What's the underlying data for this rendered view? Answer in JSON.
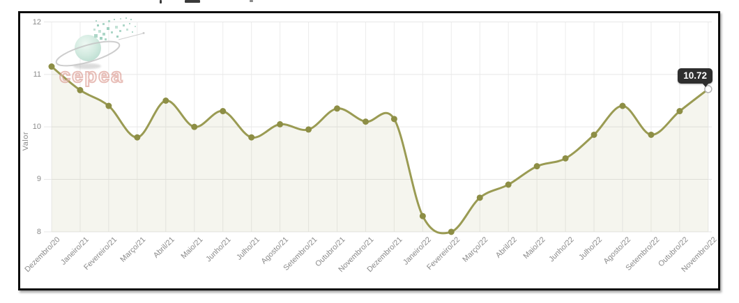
{
  "watermark": {
    "text": "cepea"
  },
  "tooltip": {
    "value": "10.72"
  },
  "colors": {
    "line": "#9a9b53",
    "dot": "#8d8e45",
    "area_fill": "rgba(155,155,85,0.10)",
    "grid_h": "#e7e7e7",
    "grid_v": "#ececec",
    "axis_text": "#8a8a8a",
    "tooltip_bg": "#2e2e2e",
    "frame_border": "#0c0c0c",
    "marker_stroke": "#b3b3b3",
    "logo_globe": "#cfe8dd",
    "logo_text": "#d68a80"
  },
  "chart_data": {
    "type": "line",
    "title": "",
    "xlabel": "",
    "ylabel": "Valor",
    "ylim": [
      8,
      12
    ],
    "yticks": [
      12,
      11,
      10,
      9,
      8
    ],
    "grid": true,
    "legend": "none",
    "categories": [
      "Dezembro/20",
      "Janeiro/21",
      "Fevereiro/21",
      "Março/21",
      "Abril/21",
      "Maio/21",
      "Junho/21",
      "Julho/21",
      "Agosto/21",
      "Setembro/21",
      "Outubro/21",
      "Novembro/21",
      "Dezembro/21",
      "Janeiro/22",
      "Fevereiro/22",
      "Março/22",
      "Abril/22",
      "Maio/22",
      "Junho/22",
      "Julho/22",
      "Agosto/22",
      "Setembro/22",
      "Outubro/22",
      "Novembro/22"
    ],
    "series": [
      {
        "name": "Valor",
        "values": [
          11.15,
          10.7,
          10.4,
          9.8,
          10.5,
          10.0,
          10.3,
          9.8,
          10.05,
          9.95,
          10.35,
          10.1,
          10.15,
          8.3,
          8.0,
          8.65,
          8.9,
          9.25,
          9.4,
          9.85,
          10.4,
          9.85,
          10.3,
          10.72
        ]
      }
    ],
    "highlighted_point": {
      "category": "Novembro/22",
      "value": 10.72,
      "tooltip": "10.72"
    }
  }
}
